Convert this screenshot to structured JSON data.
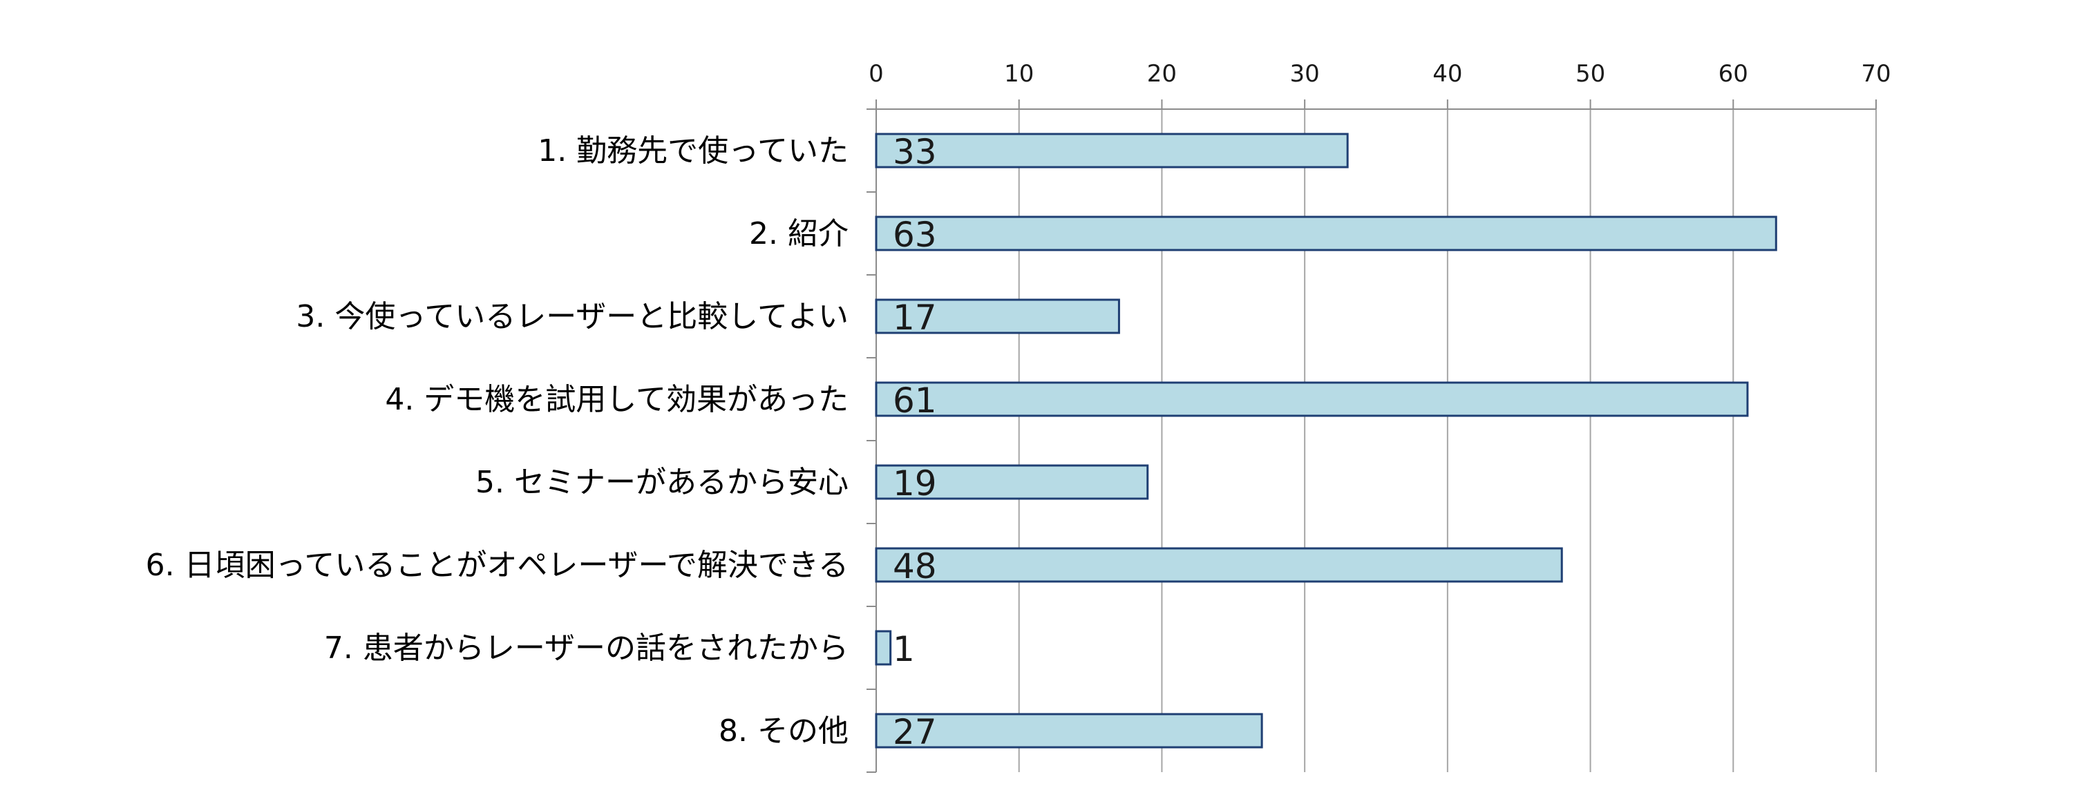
{
  "chart_data": {
    "type": "bar",
    "orientation": "horizontal",
    "categories": [
      "1. 勤務先で使っていた",
      "2. 紹介",
      "3. 今使っているレーザーと比較してよい",
      "4. デモ機を試用して効果があった",
      "5. セミナーがあるから安心",
      "6. 日頃困っていることがオペレーザーで解決できる",
      "7. 患者からレーザーの話をされたから",
      "8. その他"
    ],
    "values": [
      33,
      63,
      17,
      61,
      19,
      48,
      1,
      27
    ],
    "xlim": [
      0,
      70
    ],
    "x_ticks": [
      0,
      10,
      20,
      30,
      40,
      50,
      60,
      70
    ],
    "x_axis_position": "top",
    "grid": true,
    "legend": "none",
    "data_labels": true,
    "colors": {
      "bar_fill": "#b7dbe5",
      "bar_stroke": "#1f3f73",
      "grid": "#a6a6a6",
      "axis": "#8c8c8c"
    }
  }
}
